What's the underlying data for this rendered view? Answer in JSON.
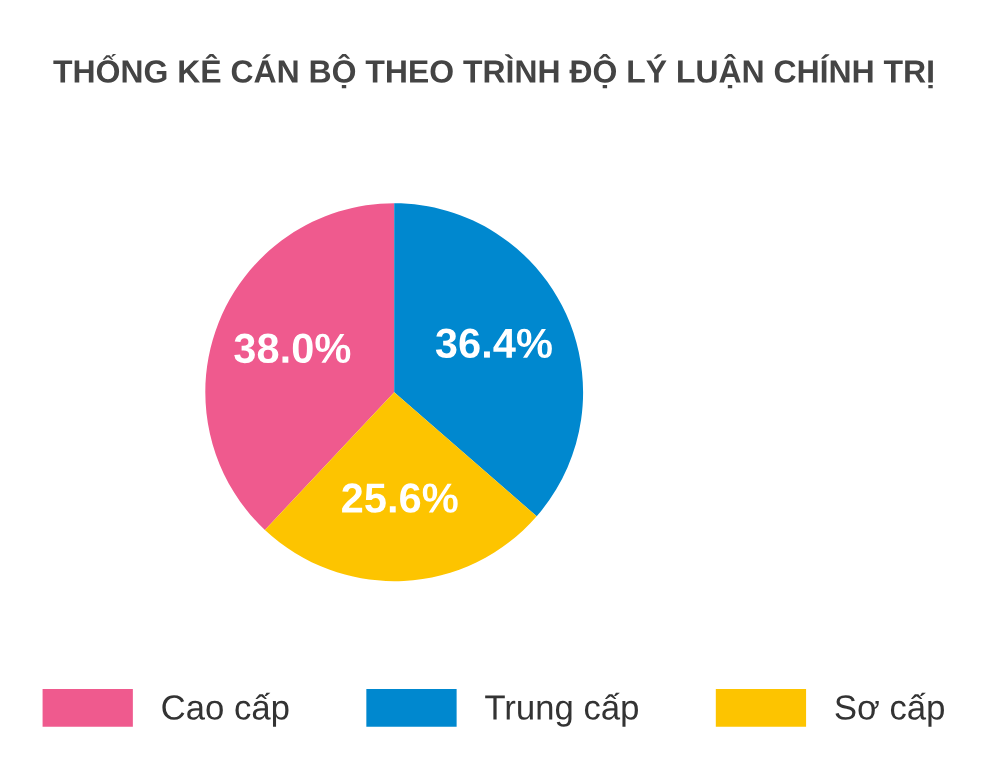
{
  "chart_data": {
    "type": "pie",
    "title": "THỐNG KÊ CÁN BỘ THEO TRÌNH ĐỘ LÝ LUẬN CHÍNH TRỊ",
    "categories": [
      "Cao cấp",
      "Trung cấp",
      "Sơ cấp"
    ],
    "values": [
      38.0,
      36.4,
      25.6
    ],
    "colors": [
      "#ef5a8e",
      "#0088cf",
      "#fdc400"
    ],
    "value_labels": [
      "38.0%",
      "36.4%",
      "25.6%"
    ],
    "legend": "bottom"
  }
}
